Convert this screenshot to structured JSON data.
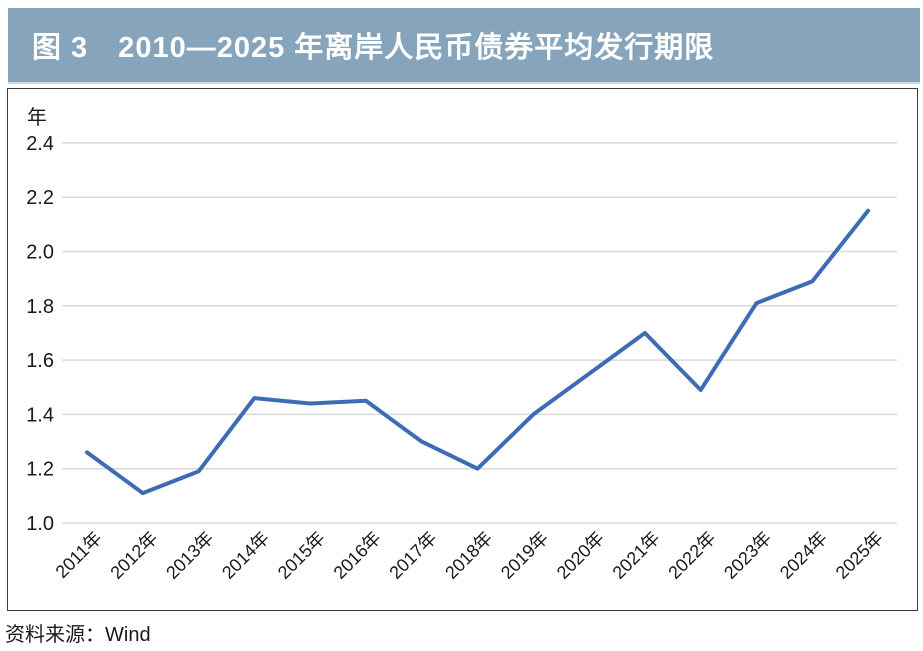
{
  "figure": {
    "title": "图 3　2010—2025 年离岸人民币债券平均发行期限",
    "title_bar_color": "#86a5bc",
    "title_text_color": "#ffffff"
  },
  "source_note": "资料来源：Wind",
  "colors": {
    "line": "#3e6cb4",
    "gridline": "#d9d9d9",
    "box_border": "#3c3c3c",
    "tick_text": "#1a1a1a"
  },
  "chart_data": {
    "type": "line",
    "title": "2010—2025 年离岸人民币债券平均发行期限",
    "unit_label": "年",
    "categories": [
      "2011年",
      "2012年",
      "2013年",
      "2014年",
      "2015年",
      "2016年",
      "2017年",
      "2018年",
      "2019年",
      "2020年",
      "2021年",
      "2022年",
      "2023年",
      "2024年",
      "2025年"
    ],
    "series": [
      {
        "name": "平均发行期限",
        "values": [
          1.26,
          1.11,
          1.19,
          1.46,
          1.44,
          1.45,
          1.3,
          1.2,
          1.4,
          1.55,
          1.7,
          1.49,
          1.81,
          1.89,
          2.15
        ]
      }
    ],
    "ylim": [
      1.0,
      2.4
    ],
    "ytick_labels": [
      "1.0",
      "1.2",
      "1.4",
      "1.6",
      "1.8",
      "2.0",
      "2.2",
      "2.4"
    ],
    "ytick_step": 0.2,
    "grid": true,
    "legend": "none",
    "x_label_rotation_deg": -45
  }
}
